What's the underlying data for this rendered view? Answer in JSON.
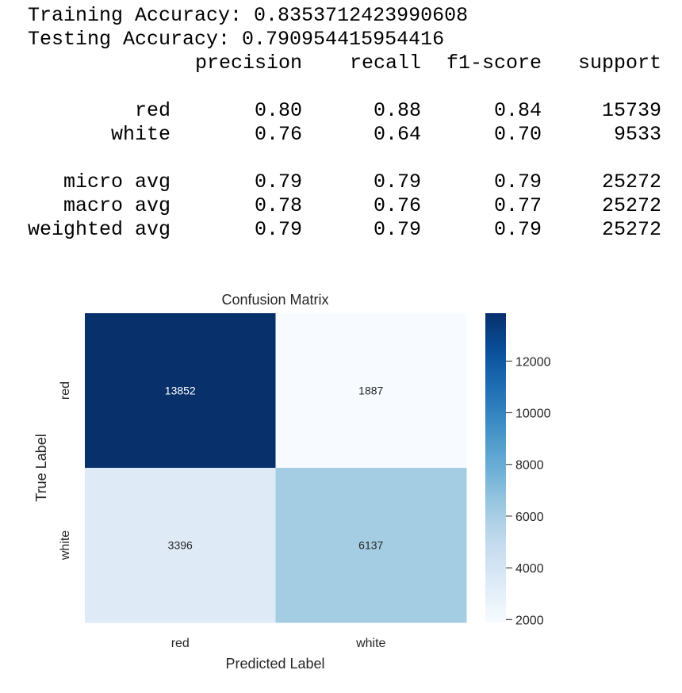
{
  "output_lines": [
    "Training Accuracy: 0.8353712423990608",
    "Testing Accuracy: 0.790954415954416"
  ],
  "report": {
    "header": [
      "precision",
      "recall",
      "f1-score",
      "support"
    ],
    "rows": [
      [
        "red",
        "0.80",
        "0.88",
        "0.84",
        "15739"
      ],
      [
        "white",
        "0.76",
        "0.64",
        "0.70",
        "9533"
      ],
      [
        "micro avg",
        "0.79",
        "0.79",
        "0.79",
        "25272"
      ],
      [
        "macro avg",
        "0.78",
        "0.76",
        "0.77",
        "25272"
      ],
      [
        "weighted avg",
        "0.79",
        "0.79",
        "0.79",
        "25272"
      ]
    ]
  },
  "chart_data": {
    "type": "heatmap",
    "title": "Confusion Matrix",
    "x_label": "Predicted Label",
    "y_label": "True Label",
    "x_categories": [
      "red",
      "white"
    ],
    "y_categories": [
      "red",
      "white"
    ],
    "values": [
      [
        13852,
        1887
      ],
      [
        3396,
        6137
      ]
    ],
    "colormap": "Blues",
    "clim": [
      1887,
      13852
    ],
    "cticks": [
      2000,
      4000,
      6000,
      8000,
      10000,
      12000
    ]
  }
}
